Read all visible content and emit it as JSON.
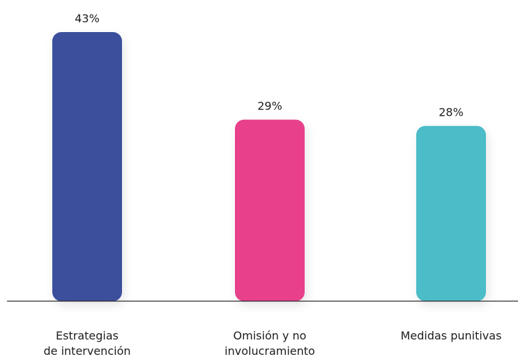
{
  "chart_data": {
    "type": "bar",
    "categories": [
      [
        "Estrategias",
        "de intervención"
      ],
      [
        "Omisión y no",
        "involucramiento"
      ],
      [
        "Medidas punitivas"
      ]
    ],
    "values": [
      43,
      29,
      28
    ],
    "value_labels": [
      "43%",
      "29%",
      "28%"
    ],
    "colors": [
      "#3a4f9c",
      "#e8408a",
      "#4bbcc8"
    ],
    "ylim": [
      0,
      43
    ],
    "grid": false,
    "legend": false,
    "title": "",
    "xlabel": "",
    "ylabel": ""
  }
}
